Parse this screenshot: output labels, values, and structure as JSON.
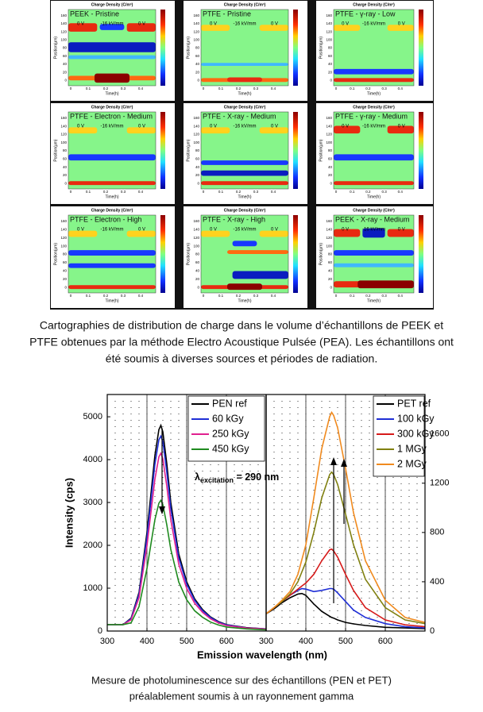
{
  "figure1": {
    "colorbar_label": "Charge Density (C/m³)",
    "x_label": "Time(h)",
    "y_label": "Position(µm)",
    "x_ticks": [
      0,
      0.1,
      0.2,
      0.3,
      0.4
    ],
    "y_ticks": [
      0,
      20,
      40,
      60,
      80,
      100,
      120,
      140,
      160
    ],
    "panels": [
      {
        "title": "PEEK - Pristine",
        "left": "0 V",
        "field": "-16 kV/mm",
        "right": "0 V"
      },
      {
        "title": "PTFE - Pristine",
        "left": "0 V",
        "field": "-16 kV/mm",
        "right": "0 V"
      },
      {
        "title": "PTFE - γ-ray - Low",
        "left": "0 V",
        "field": "-16 kV/mm",
        "right": "0 V"
      },
      {
        "title": "PTFE - Electron - Medium",
        "left": "0 V",
        "field": "-16 kV/mm",
        "right": "0 V"
      },
      {
        "title": "PTFE - X-ray - Medium",
        "left": "0 V",
        "field": "-16 kV/mm",
        "right": "0 V"
      },
      {
        "title": "PTFE - γ-ray - Medium",
        "left": "0 V",
        "field": "-16 kV/mm",
        "right": "0 V"
      },
      {
        "title": "PTFE - Electron - High",
        "left": "0 V",
        "field": "-16 kV/mm",
        "right": "0 V"
      },
      {
        "title": "PTFE - X-ray - High",
        "left": "0 V",
        "field": "-16 kV/mm",
        "right": "0 V"
      },
      {
        "title": "PEEK - X-ray - Medium",
        "left": "0 V",
        "field": "-16 kV/mm",
        "right": "0 V"
      }
    ]
  },
  "caption1": [
    "Cartographies de distribution de charge dans le volume d’échantillons de PEEK et",
    "PTFE obtenues par la méthode Electro Acoustique Pulsée (PEA). Les échantillons ont",
    "été soumis à diverses sources et périodes de radiation."
  ],
  "figure2": {
    "y_label": "Intensity (cps)",
    "x_label": "Emission wavelength (nm)",
    "annotation": {
      "symbol": "λ",
      "subscript": "excitation",
      "text": " = 290 nm"
    },
    "charts": [
      {
        "type": "line",
        "x": [
          300,
          340,
          360,
          380,
          400,
          410,
          420,
          430,
          435,
          440,
          450,
          460,
          480,
          500,
          520,
          540,
          560,
          580,
          600,
          650,
          700
        ],
        "xlim": [
          300,
          700
        ],
        "xticks": [
          300,
          400,
          500,
          600
        ],
        "ylim": [
          0,
          5520
        ],
        "yticks": [
          0,
          1000,
          2000,
          3000,
          4000,
          5000
        ],
        "series": [
          {
            "name": "PEN ref",
            "color": "#000000",
            "values": [
              150,
              150,
              300,
              900,
              2300,
              3200,
              4100,
              4700,
              4800,
              4650,
              3900,
              3000,
              1800,
              1150,
              750,
              500,
              330,
              220,
              150,
              80,
              50
            ]
          },
          {
            "name": "60 kGy",
            "color": "#1f2fd6",
            "values": [
              150,
              150,
              285,
              855,
              2185,
              3040,
              3895,
              4465,
              4550,
              4420,
              3705,
              2850,
              1710,
              1095,
              715,
              475,
              315,
              210,
              145,
              75,
              50
            ]
          },
          {
            "name": "250 kGy",
            "color": "#e0208f",
            "values": [
              150,
              150,
              260,
              780,
              1990,
              2770,
              3545,
              4065,
              4150,
              4020,
              3375,
              2595,
              1560,
              995,
              650,
              435,
              285,
              190,
              130,
              70,
              45
            ]
          },
          {
            "name": "450 kGy",
            "color": "#1f8a1f",
            "values": [
              150,
              150,
              190,
              570,
              1460,
              2030,
              2600,
              2985,
              3050,
              2950,
              2475,
              1905,
              1145,
              730,
              475,
              320,
              210,
              140,
              95,
              50,
              30
            ]
          }
        ]
      },
      {
        "type": "line",
        "x": [
          300,
          320,
          340,
          360,
          380,
          390,
          400,
          420,
          440,
          460,
          465,
          470,
          480,
          500,
          520,
          550,
          600,
          650,
          700
        ],
        "xlim": [
          300,
          700
        ],
        "xticks": [
          300,
          400,
          500,
          600
        ],
        "y2lim": [
          0,
          1920
        ],
        "y2ticks": [
          0,
          400,
          800,
          1200,
          1600
        ],
        "series": [
          {
            "name": "PET ref",
            "color": "#000000",
            "axis": "y2",
            "values": [
              140,
              180,
              230,
              270,
              300,
              305,
              290,
              220,
              160,
              120,
              110,
              105,
              90,
              70,
              58,
              45,
              30,
              25,
              20
            ]
          },
          {
            "name": "100 kGy",
            "color": "#1f2fd6",
            "axis": "y2",
            "values": [
              140,
              190,
              240,
              290,
              330,
              345,
              340,
              320,
              330,
              345,
              345,
              340,
              310,
              240,
              170,
              110,
              60,
              35,
              25
            ]
          },
          {
            "name": "300 kGy",
            "color": "#d61a1a",
            "axis": "y2",
            "values": [
              140,
              190,
              240,
              290,
              340,
              365,
              390,
              460,
              570,
              660,
              665,
              650,
              600,
              460,
              330,
              190,
              90,
              50,
              35
            ]
          },
          {
            "name": "1 MGy",
            "color": "#808010",
            "axis": "y2",
            "values": [
              140,
              190,
              240,
              300,
              400,
              480,
              560,
              800,
              1080,
              1270,
              1290,
              1270,
              1190,
              950,
              700,
              420,
              190,
              90,
              60
            ]
          },
          {
            "name": "2 MGy",
            "color": "#f08a1e",
            "axis": "y2",
            "values": [
              140,
              190,
              250,
              320,
              460,
              580,
              700,
              1080,
              1480,
              1740,
              1775,
              1750,
              1650,
              1320,
              960,
              570,
              250,
              110,
              70
            ]
          }
        ]
      }
    ]
  },
  "caption2": [
    "Mesure de photoluminescence sur des échantillons (PEN et PET)",
    "préalablement soumis à un rayonnement gamma"
  ]
}
